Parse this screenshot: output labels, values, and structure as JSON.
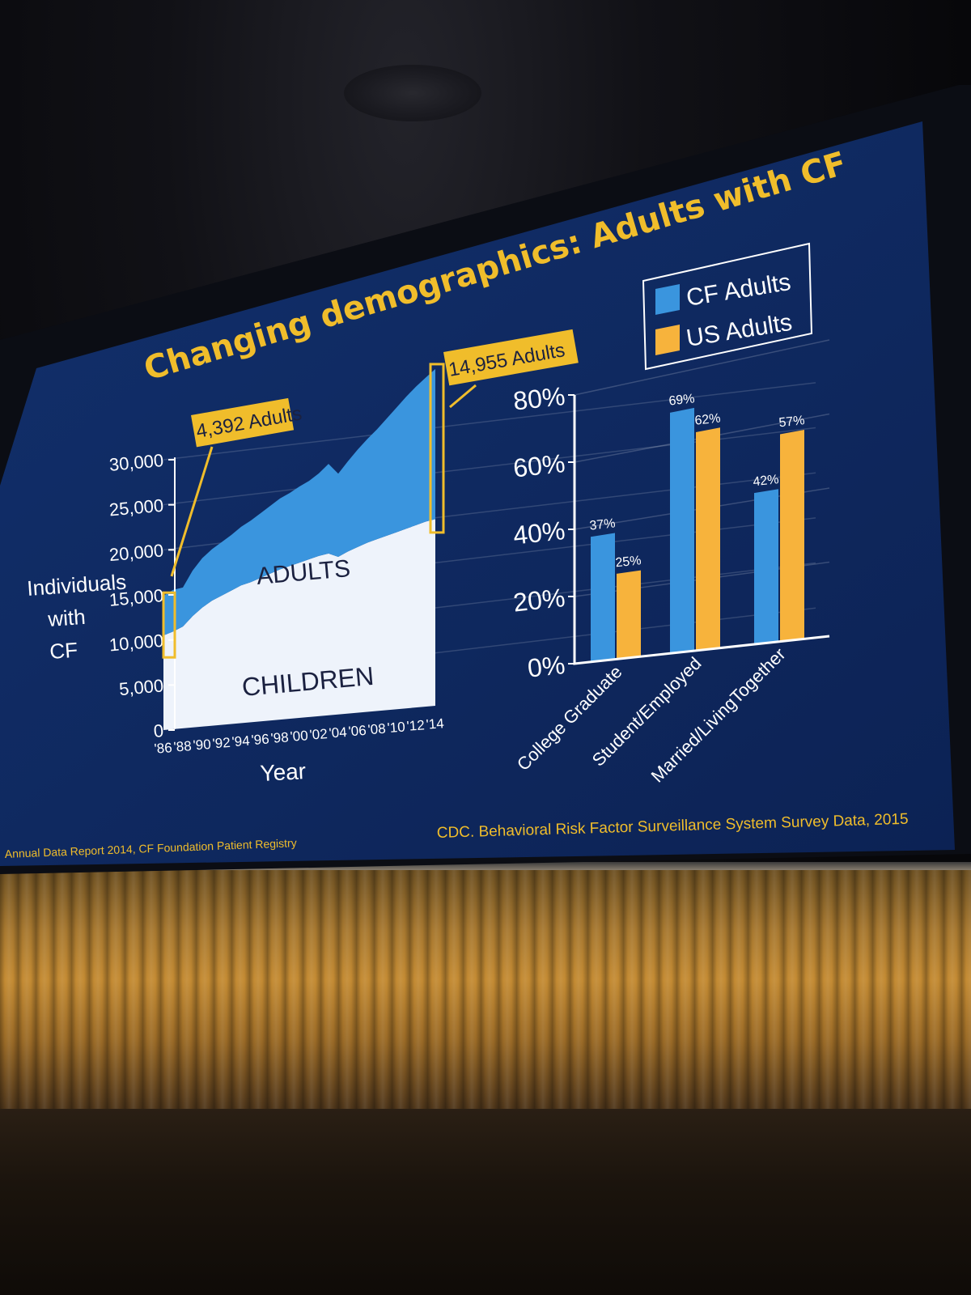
{
  "slide": {
    "title": "Changing demographics: Adults with CF",
    "source_left": "Annual Data Report 2014, CF Foundation Patient Registry",
    "source_right": "CDC. Behavioral Risk Factor Surveillance System Survey Data, 2015"
  },
  "colors": {
    "slide_bg": "#0f2860",
    "title": "#f0bd2b",
    "cf_adults": "#3a95de",
    "us_adults": "#f7b33c",
    "children": "#eef3fb",
    "callout_fill": "#f0bd2b"
  },
  "chart_data": [
    {
      "type": "area",
      "title": "",
      "xlabel": "Year",
      "ylabel": "Individuals with CF",
      "ylabel_lines": [
        "Individuals",
        "with",
        "CF"
      ],
      "ylim": [
        0,
        30000
      ],
      "yticks": [
        "0",
        "5,000",
        "10,000",
        "15,000",
        "20,000",
        "25,000",
        "30,000"
      ],
      "ytick_values": [
        0,
        5000,
        10000,
        15000,
        20000,
        25000,
        30000
      ],
      "x_tick_labels": [
        "'86",
        "'88",
        "'90",
        "'92",
        "'94",
        "'96",
        "'98",
        "'00",
        "'02",
        "'04",
        "'06",
        "'08",
        "'10",
        "'12",
        "'14"
      ],
      "x": [
        1986,
        1987,
        1988,
        1989,
        1990,
        1991,
        1992,
        1993,
        1994,
        1995,
        1996,
        1997,
        1998,
        1999,
        2000,
        2001,
        2002,
        2003,
        2004,
        2005,
        2006,
        2007,
        2008,
        2009,
        2010,
        2011,
        2012,
        2013,
        2014
      ],
      "series": [
        {
          "name": "CHILDREN",
          "values": [
            10500,
            10800,
            11200,
            12200,
            13000,
            13600,
            14000,
            14400,
            14800,
            15000,
            15300,
            15600,
            15900,
            16100,
            16300,
            16500,
            16700,
            16800,
            16300,
            16700,
            17000,
            17300,
            17500,
            17700,
            17900,
            18100,
            18300,
            18500,
            18600
          ]
        },
        {
          "name": "ADULTS",
          "values": [
            4392,
            4600,
            4300,
            5000,
            5400,
            5600,
            5800,
            6000,
            6300,
            6600,
            6900,
            7200,
            7500,
            7700,
            8000,
            8200,
            8600,
            9300,
            8600,
            9300,
            10000,
            10600,
            11200,
            11900,
            12600,
            13300,
            13900,
            14400,
            14955
          ]
        }
      ],
      "area_labels": {
        "adults": "ADULTS",
        "children": "CHILDREN"
      },
      "annotations": [
        {
          "text": "4,392 Adults",
          "x": 1986
        },
        {
          "text": "14,955 Adults",
          "x": 2014
        }
      ]
    },
    {
      "type": "bar",
      "title": "",
      "categories": [
        "College Graduate",
        "Student/Employed",
        "Married/LivingTogether"
      ],
      "series": [
        {
          "name": "CF Adults",
          "values": [
            37,
            69,
            42
          ]
        },
        {
          "name": "US Adults",
          "values": [
            25,
            62,
            57
          ]
        }
      ],
      "data_labels": [
        [
          "37%",
          "69%",
          "42%"
        ],
        [
          "25%",
          "62%",
          "57%"
        ]
      ],
      "ylim": [
        0,
        80
      ],
      "yticks": [
        "0%",
        "20%",
        "40%",
        "60%",
        "80%"
      ],
      "ytick_values": [
        0,
        20,
        40,
        60,
        80
      ],
      "legend": "top-right",
      "legend_entries": [
        "CF Adults",
        "US Adults"
      ]
    }
  ]
}
